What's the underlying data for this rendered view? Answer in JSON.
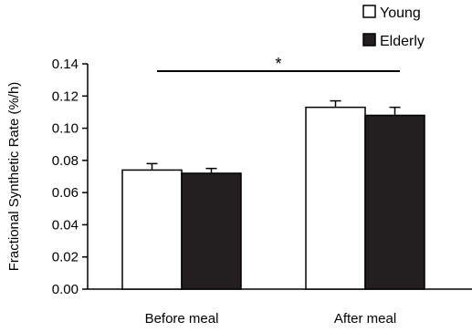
{
  "chart_data": {
    "type": "bar",
    "categories": [
      "Before meal",
      "After meal"
    ],
    "series": [
      {
        "name": "Young",
        "values": [
          0.074,
          0.113
        ],
        "errors": [
          0.004,
          0.004
        ],
        "color": "#ffffff"
      },
      {
        "name": "Elderly",
        "values": [
          0.072,
          0.108
        ],
        "errors": [
          0.003,
          0.005
        ],
        "color": "#231f20"
      }
    ],
    "ylabel": "Fractional Synthetic Rate (%/h)",
    "xlabel": "",
    "ylim": [
      0,
      0.14
    ],
    "yticks": [
      "0.00",
      "0.02",
      "0.04",
      "0.06",
      "0.08",
      "0.10",
      "0.12",
      "0.14"
    ],
    "error_bars": "upper",
    "grid": false,
    "legend": "top-right",
    "annotation": "*"
  }
}
